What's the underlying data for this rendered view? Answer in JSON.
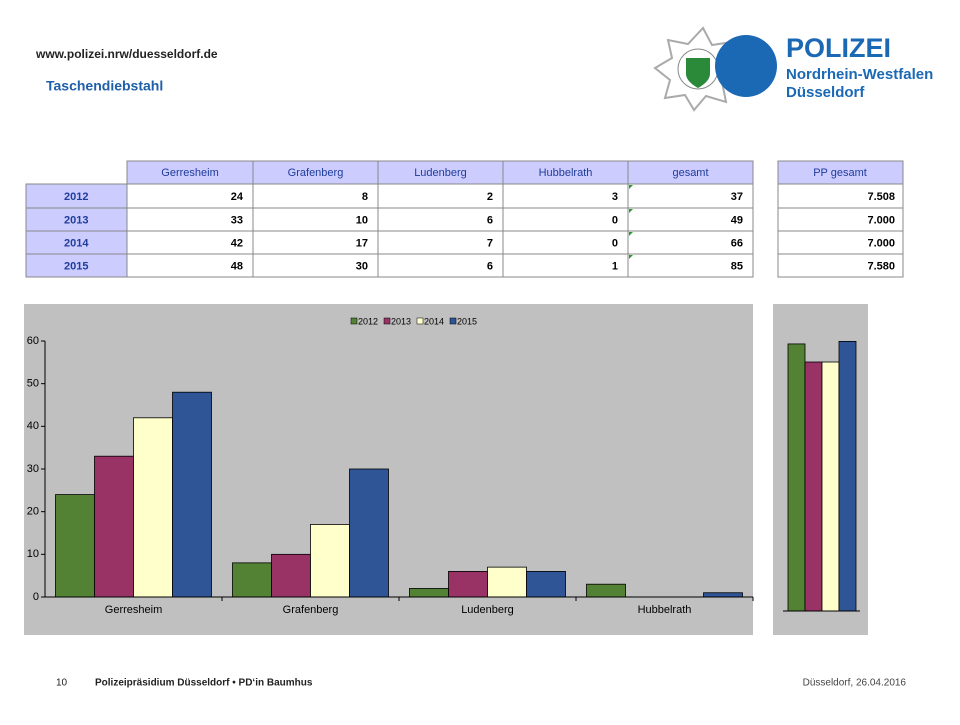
{
  "header": {
    "url": "www.polizei.nrw/duesseldorf.de",
    "title": "Taschendiebstahl",
    "logo": {
      "name": "POLIZEI",
      "region": "Nordrhein-Westfalen",
      "city": "Düsseldorf"
    }
  },
  "table": {
    "columns": [
      "Gerresheim",
      "Grafenberg",
      "Ludenberg",
      "Hubbelrath",
      "gesamt"
    ],
    "pp_column": "PP gesamt",
    "rows": [
      {
        "year": "2012",
        "values": [
          24,
          8,
          2,
          3,
          37
        ],
        "pp": "7.508"
      },
      {
        "year": "2013",
        "values": [
          33,
          10,
          6,
          0,
          49
        ],
        "pp": "7.000"
      },
      {
        "year": "2014",
        "values": [
          42,
          17,
          7,
          0,
          66
        ],
        "pp": "7.000"
      },
      {
        "year": "2015",
        "values": [
          48,
          30,
          6,
          1,
          85
        ],
        "pp": "7.580"
      }
    ]
  },
  "chart_data": [
    {
      "type": "bar",
      "categories": [
        "Gerresheim",
        "Grafenberg",
        "Ludenberg",
        "Hubbelrath"
      ],
      "series": [
        {
          "name": "2012",
          "color": "#548235",
          "values": [
            24,
            8,
            2,
            3
          ]
        },
        {
          "name": "2013",
          "color": "#993366",
          "values": [
            33,
            10,
            6,
            0
          ]
        },
        {
          "name": "2014",
          "color": "#ffffcc",
          "values": [
            42,
            17,
            7,
            0
          ]
        },
        {
          "name": "2015",
          "color": "#2f5597",
          "values": [
            48,
            30,
            6,
            1
          ]
        }
      ],
      "ylim": [
        0,
        60
      ],
      "yticks": [
        0,
        10,
        20,
        30,
        40,
        50,
        60
      ],
      "legend": "top"
    },
    {
      "type": "bar",
      "values": [
        7508,
        7000,
        7000,
        7580
      ],
      "colors": [
        "#548235",
        "#993366",
        "#ffffcc",
        "#2f5597"
      ],
      "ylim": [
        0,
        7900
      ]
    }
  ],
  "footer": {
    "page": "10",
    "org": "Polizeipräsidium Düsseldorf • PD‘in Baumhus",
    "date": "Düsseldorf, 26.04.2016"
  }
}
